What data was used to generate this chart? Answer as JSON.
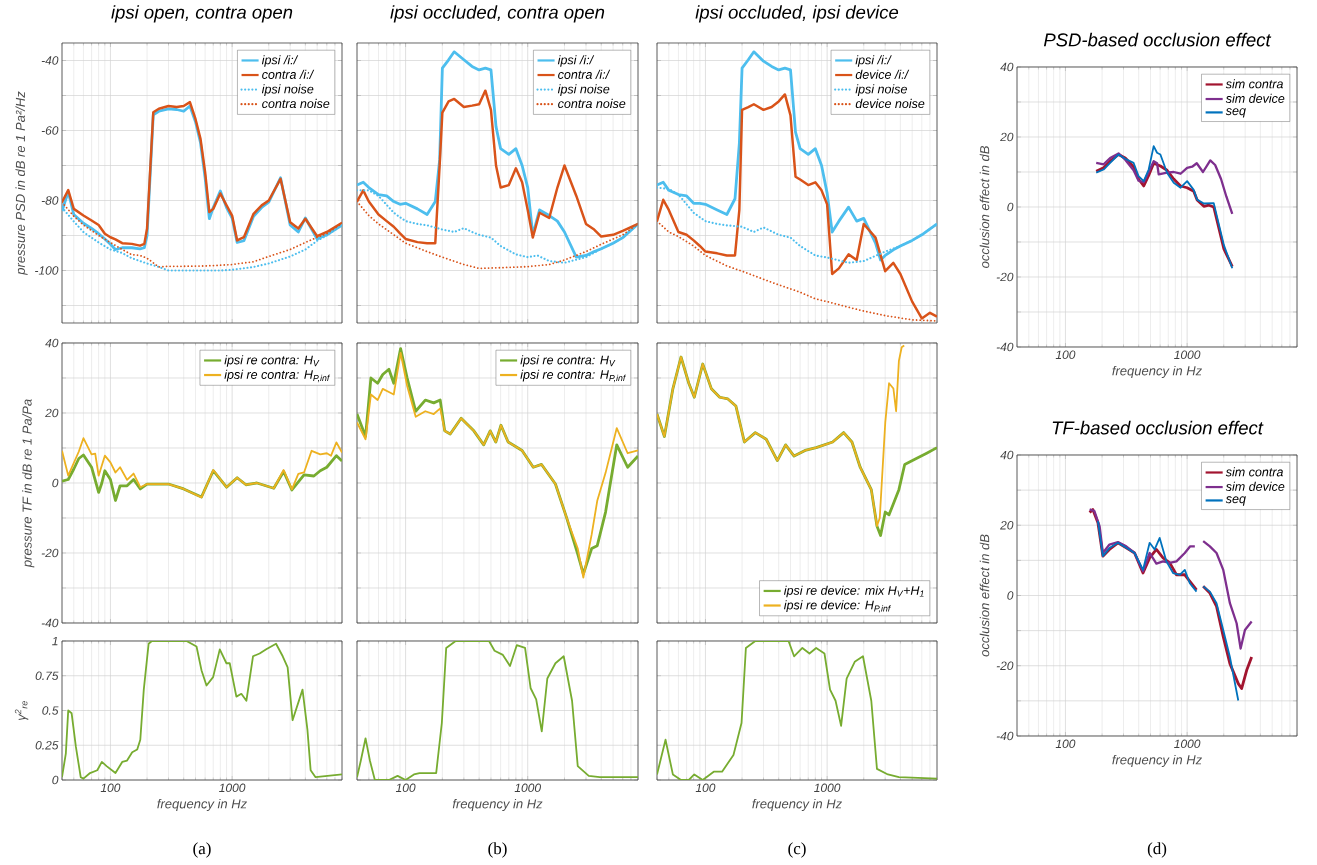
{
  "chart_data": [
    {
      "type": "line",
      "title": "ipsi open, contra open",
      "ylabel": "pressure PSD in dB re 1 Pa²/Hz",
      "xlim": [
        40,
        8000
      ],
      "xticks": [
        100,
        1000
      ],
      "ylim": [
        -115,
        -35
      ],
      "yticks": [
        {
          "value": -110,
          "label": null
        },
        -100,
        {
          "value": -90,
          "label": null
        },
        -80,
        {
          "value": -70,
          "label": null
        },
        -60,
        {
          "value": -50,
          "label": null
        },
        -40
      ],
      "log": "x",
      "grid": true,
      "legend": "top right",
      "tick_labels": "y",
      "series": [
        {
          "name": "ipsi /i:/",
          "color": "#4dbeee",
          "x": [
            40,
            45,
            50,
            60,
            70,
            80,
            90,
            100,
            110,
            125,
            150,
            175,
            190,
            200,
            225,
            250,
            300,
            350,
            400,
            450,
            500,
            550,
            600,
            650,
            700,
            800,
            900,
            1000,
            1100,
            1250,
            1500,
            1750,
            2000,
            2500,
            3000,
            3500,
            4000,
            5000,
            6000,
            8000
          ],
          "values": [
            -83,
            -77.5,
            -84,
            -86.5,
            -88,
            -89.5,
            -91,
            -92.5,
            -94,
            -93.5,
            -93.5,
            -93.8,
            -93.5,
            -90,
            -55.5,
            -54.5,
            -53.8,
            -54,
            -54.5,
            -53,
            -57.5,
            -63.5,
            -73.5,
            -85.2,
            -82,
            -77.3,
            -82,
            -85,
            -92,
            -91.5,
            -84.5,
            -82,
            -80.5,
            -73.5,
            -87,
            -89,
            -85,
            -91,
            -89.8,
            -87
          ]
        },
        {
          "name": "contra /i:/",
          "color": "#d95319",
          "x": [
            40,
            45,
            50,
            60,
            70,
            80,
            90,
            100,
            110,
            125,
            150,
            175,
            190,
            200,
            225,
            250,
            300,
            350,
            400,
            450,
            500,
            550,
            600,
            650,
            700,
            800,
            900,
            1000,
            1100,
            1250,
            1500,
            1750,
            2000,
            2500,
            3000,
            3500,
            4000,
            5000,
            6000,
            8000
          ],
          "values": [
            -80.5,
            -77,
            -82.4,
            -84.3,
            -85.7,
            -87,
            -89.5,
            -90.5,
            -91.1,
            -92.2,
            -92.4,
            -92.9,
            -92.4,
            -88,
            -54.8,
            -53.8,
            -53,
            -53.3,
            -53,
            -51.9,
            -56.7,
            -62.4,
            -71.9,
            -83.3,
            -82.4,
            -78,
            -81.4,
            -84.3,
            -91.4,
            -90.5,
            -83.8,
            -81.4,
            -80,
            -73.8,
            -86.2,
            -88,
            -85.2,
            -90.2,
            -89,
            -86.4
          ]
        },
        {
          "name": "ipsi noise",
          "color": "#4dbeee",
          "line_style": "dotted",
          "x": [
            40,
            50,
            60,
            80,
            100,
            125,
            150,
            200,
            250,
            300,
            400,
            600,
            800,
            1000,
            1500,
            2000,
            3000,
            4000,
            5000,
            6000,
            8000
          ],
          "values": [
            -82,
            -86,
            -89,
            -92,
            -94,
            -95,
            -96.5,
            -98,
            -99,
            -100,
            -100,
            -100,
            -100,
            -99.8,
            -99,
            -98,
            -96,
            -94,
            -91.5,
            -90,
            -87
          ]
        },
        {
          "name": "contra noise",
          "color": "#d95319",
          "line_style": "dotted",
          "x": [
            40,
            50,
            60,
            80,
            100,
            125,
            150,
            175,
            200,
            250,
            300,
            400,
            600,
            800,
            1000,
            1500,
            2000,
            3000,
            4000,
            5000,
            6000,
            8000
          ],
          "values": [
            -80.5,
            -84.5,
            -87,
            -90,
            -92,
            -94,
            -95.5,
            -95.7,
            -96.5,
            -99,
            -98.8,
            -98.8,
            -98.7,
            -98.5,
            -98.3,
            -97.5,
            -96,
            -94,
            -92,
            -90.5,
            -89.5,
            -86.5
          ]
        }
      ]
    },
    {
      "type": "line",
      "ylabel": "pressure TF in dB re 1 Pa/Pa",
      "xlim": [
        40,
        8000
      ],
      "xticks": [
        100,
        1000
      ],
      "ylim": [
        -40,
        40
      ],
      "yticks": [
        -40,
        {
          "value": -30,
          "label": null
        },
        -20,
        {
          "value": -10,
          "label": null
        },
        0,
        {
          "value": 10,
          "label": null
        },
        20,
        {
          "value": 30,
          "label": null
        },
        40
      ],
      "log": "x",
      "grid": true,
      "legend": "top right",
      "tick_labels": "y",
      "series": [
        {
          "name": "ipsi re contra: H$_{V}$",
          "color": "#77ac30",
          "x": [
            40,
            45,
            50,
            55,
            60,
            70,
            80,
            85,
            90,
            100,
            110,
            120,
            137,
            155,
            176,
            200,
            300,
            400,
            560,
            700,
            900,
            1100,
            1300,
            1600,
            2200,
            2650,
            3100,
            3900,
            4700,
            5300,
            6000,
            7200,
            8000
          ],
          "values": [
            0.5,
            1,
            4,
            7,
            8,
            4.5,
            -2.7,
            0,
            3.5,
            1,
            -5,
            -0.8,
            -0.8,
            1,
            -1.7,
            -0.3,
            -0.3,
            -1.7,
            -4,
            3.5,
            -1.2,
            1.5,
            -0.5,
            0,
            -1.5,
            3.3,
            -2,
            2.3,
            2,
            3.5,
            4.5,
            7.8,
            6.3
          ]
        },
        {
          "name": "ipsi re contra: H$_{P,inf}$",
          "color": "#edb120",
          "x": [
            40,
            45,
            55,
            60,
            70,
            75,
            80,
            90,
            100,
            110,
            120,
            137,
            155,
            176,
            200,
            300,
            400,
            560,
            700,
            900,
            1100,
            1300,
            1600,
            2200,
            2650,
            3100,
            3500,
            3900,
            4500,
            5300,
            6000,
            6500,
            7200,
            8000
          ],
          "values": [
            9.2,
            2.1,
            9,
            12.8,
            8.2,
            8.4,
            2.1,
            7.8,
            5.9,
            3,
            4.5,
            0.9,
            2.7,
            -1.2,
            -0.3,
            -0.3,
            -1.7,
            -4.1,
            3.7,
            -1.2,
            1.5,
            -0.5,
            0,
            -1.5,
            3.7,
            -1.8,
            2.6,
            3,
            9.2,
            8.2,
            8.5,
            7.8,
            11.6,
            8.7
          ]
        }
      ]
    },
    {
      "type": "line",
      "ylabel": "γ$^{2}$$_{re}$",
      "xlabel": "frequency in Hz",
      "annotations": [
        "(a)"
      ],
      "xlim": [
        40,
        8000
      ],
      "xticks": [
        100,
        1000
      ],
      "ylim": [
        0,
        1
      ],
      "yticks": [
        0,
        0.25,
        0.5,
        0.75,
        1
      ],
      "log": "x",
      "grid": true,
      "series": [
        {
          "color": "#77ac30",
          "x": [
            40,
            43,
            45,
            48,
            52,
            57,
            60,
            68,
            78,
            85,
            93,
            110,
            125,
            137,
            151,
            166,
            176,
            188,
            206,
            219,
            422,
            510,
            560,
            616,
            698,
            792,
            898,
            956,
            1084,
            1191,
            1310,
            1485,
            1683,
            1908,
            2296,
            2606,
            2860,
            3140,
            3790,
            4160,
            4420,
            4850,
            8000
          ],
          "values": [
            0.02,
            0.19,
            0.5,
            0.48,
            0.24,
            0.02,
            0.01,
            0.05,
            0.07,
            0.13,
            0.1,
            0.05,
            0.13,
            0.14,
            0.2,
            0.22,
            0.29,
            0.65,
            0.98,
            1,
            1,
            0.96,
            0.79,
            0.68,
            0.74,
            0.94,
            0.84,
            0.84,
            0.6,
            0.62,
            0.57,
            0.89,
            0.91,
            0.94,
            0.98,
            0.89,
            0.81,
            0.43,
            0.65,
            0.36,
            0.07,
            0.02,
            0.04
          ]
        }
      ]
    },
    {
      "type": "line",
      "title": "ipsi occluded, contra open",
      "xlim": [
        40,
        8000
      ],
      "xticks": [
        100,
        1000
      ],
      "ylim": [
        -115,
        -35
      ],
      "yticks": [
        {
          "value": -110,
          "label": null
        },
        -100,
        {
          "value": -90,
          "label": null
        },
        -80,
        {
          "value": -70,
          "label": null
        },
        -60,
        {
          "value": -50,
          "label": null
        },
        -40
      ],
      "log": "x",
      "grid": true,
      "legend": "top right",
      "tick_labels": false,
      "series": [
        {
          "name": "ipsi /i:/",
          "color": "#4dbeee",
          "x": [
            40,
            45,
            50,
            60,
            70,
            80,
            90,
            100,
            125,
            150,
            175,
            190,
            200,
            225,
            250,
            300,
            350,
            400,
            450,
            500,
            550,
            600,
            700,
            800,
            900,
            1000,
            1100,
            1250,
            1500,
            1750,
            2000,
            2500,
            3000,
            3500,
            4000,
            5000,
            6000,
            8000
          ],
          "values": [
            -75.6,
            -74.8,
            -76.3,
            -78.3,
            -78.7,
            -80.3,
            -81.1,
            -80.8,
            -82.4,
            -84,
            -80.3,
            -68.4,
            -42.2,
            -39.8,
            -37.5,
            -39.8,
            -41.7,
            -42.7,
            -42.2,
            -42.7,
            -58.9,
            -65.2,
            -66.8,
            -65.2,
            -70,
            -76.3,
            -89.8,
            -82.7,
            -84.3,
            -85.9,
            -89,
            -96.2,
            -95.7,
            -94.6,
            -93.8,
            -92.2,
            -90.6,
            -86.7
          ]
        },
        {
          "name": "contra /i:/",
          "color": "#d95319",
          "x": [
            40,
            45,
            50,
            60,
            70,
            80,
            90,
            100,
            125,
            150,
            175,
            190,
            200,
            225,
            250,
            300,
            350,
            400,
            450,
            500,
            550,
            600,
            700,
            800,
            900,
            1000,
            1100,
            1250,
            1500,
            1750,
            2000,
            2500,
            3000,
            3500,
            4000,
            5000,
            6000,
            8000
          ],
          "values": [
            -80.3,
            -77.1,
            -80.3,
            -84,
            -85.9,
            -87.5,
            -89.4,
            -91,
            -91.9,
            -92.2,
            -92.2,
            -70,
            -54.9,
            -51.7,
            -51,
            -53.3,
            -52.9,
            -52.5,
            -48.6,
            -54.1,
            -70,
            -76.3,
            -75.6,
            -70.8,
            -74.8,
            -82.7,
            -90.6,
            -83.5,
            -85,
            -76.3,
            -70,
            -78.7,
            -86.7,
            -88.3,
            -90.3,
            -89.8,
            -88.7,
            -86.7
          ]
        },
        {
          "name": "ipsi noise",
          "color": "#4dbeee",
          "line_style": "dotted",
          "x": [
            40,
            50,
            60,
            80,
            100,
            125,
            150,
            200,
            250,
            300,
            350,
            400,
            500,
            600,
            800,
            1000,
            1200,
            1500,
            2000,
            3000,
            4000,
            5000,
            6000,
            8000
          ],
          "values": [
            -77.1,
            -77.1,
            -78.7,
            -83.5,
            -85.9,
            -86.7,
            -87.1,
            -88.3,
            -89,
            -87.9,
            -89,
            -89.8,
            -90.6,
            -93,
            -95.4,
            -96.2,
            -95.7,
            -97.3,
            -97.8,
            -96.2,
            -93.8,
            -92.2,
            -90.6,
            -86.7
          ]
        },
        {
          "name": "contra noise",
          "color": "#d95319",
          "line_style": "dotted",
          "x": [
            40,
            50,
            60,
            80,
            100,
            150,
            200,
            300,
            400,
            600,
            1000,
            1500,
            2000,
            3000,
            4000,
            6000,
            8000
          ],
          "values": [
            -80.3,
            -84.3,
            -86.7,
            -89.8,
            -92.2,
            -94.6,
            -96.2,
            -98.3,
            -99.4,
            -99.2,
            -98.9,
            -98.3,
            -97,
            -94.6,
            -92.5,
            -89.8,
            -86.7
          ]
        }
      ]
    },
    {
      "type": "line",
      "xlim": [
        40,
        8000
      ],
      "xticks": [
        100,
        1000
      ],
      "ylim": [
        -40,
        40
      ],
      "yticks": [
        -40,
        {
          "value": -30,
          "label": null
        },
        -20,
        {
          "value": -10,
          "label": null
        },
        0,
        {
          "value": 10,
          "label": null
        },
        20,
        {
          "value": 30,
          "label": null
        },
        40
      ],
      "log": "x",
      "grid": true,
      "legend": "top right",
      "tick_labels": false,
      "series": [
        {
          "name": "ipsi re contra: H$_{V}$",
          "color": "#77ac30",
          "x": [
            40,
            47,
            52,
            59,
            65,
            73,
            80,
            91,
            103,
            121,
            145,
            170,
            192,
            209,
            232,
            285,
            362,
            436,
            493,
            548,
            604,
            691,
            899,
            1110,
            1298,
            1686,
            2081,
            2568,
            2853,
            3340,
            3710,
            4340,
            5360,
            6580,
            8000
          ],
          "values": [
            19.7,
            13.3,
            30,
            28.5,
            31,
            32.5,
            28.5,
            38.4,
            30,
            20.5,
            23.7,
            22.9,
            23.7,
            14.9,
            14,
            18.5,
            14.9,
            10.9,
            14.9,
            11.7,
            16.5,
            11.7,
            9.3,
            4.5,
            5.3,
            -0.3,
            -9.9,
            -20.3,
            -26,
            -18.7,
            -17.9,
            -8.3,
            10.9,
            4.5,
            7.7
          ]
        },
        {
          "name": "ipsi re contra: H$_{P,inf}$",
          "color": "#edb120",
          "x": [
            40,
            47,
            52,
            59,
            65,
            73,
            80,
            91,
            103,
            121,
            145,
            170,
            192,
            209,
            232,
            285,
            362,
            436,
            493,
            548,
            604,
            691,
            899,
            1110,
            1298,
            1686,
            2081,
            2568,
            2853,
            3340,
            3710,
            4340,
            5360,
            6580,
            8000
          ],
          "values": [
            17.3,
            12.5,
            25.3,
            23.7,
            26.9,
            26,
            25.3,
            37.2,
            27.7,
            18.9,
            20.5,
            19.7,
            21.3,
            14.9,
            14,
            18.5,
            14.9,
            10.9,
            14.9,
            11.7,
            16.5,
            11.7,
            9.3,
            4.5,
            5.3,
            -0.3,
            -9.9,
            -18.7,
            -27,
            -14.7,
            -5.1,
            2.9,
            15.7,
            8.5,
            9.3
          ]
        }
      ]
    },
    {
      "type": "line",
      "xlabel": "frequency in Hz",
      "annotations": [
        "(b)"
      ],
      "xlim": [
        40,
        8000
      ],
      "xticks": [
        100,
        1000
      ],
      "ylim": [
        0,
        1
      ],
      "yticks": [
        0,
        0.25,
        0.5,
        0.75,
        1
      ],
      "log": "x",
      "grid": true,
      "tick_labels": "x",
      "series": [
        {
          "color": "#77ac30",
          "x": [
            40,
            43,
            47,
            51,
            56,
            73,
            86,
            100,
            117,
            130,
            178,
            198,
            215,
            257,
            482,
            535,
            626,
            716,
            813,
            951,
            1057,
            1173,
            1303,
            1447,
            1686,
            1971,
            2307,
            2568,
            3160,
            3890,
            8000
          ],
          "values": [
            0.02,
            0.14,
            0.3,
            0.14,
            0,
            0,
            0.03,
            0,
            0.04,
            0.05,
            0.05,
            0.41,
            0.95,
            1,
            1,
            0.93,
            0.9,
            0.82,
            0.97,
            0.95,
            0.66,
            0.58,
            0.35,
            0.73,
            0.84,
            0.89,
            0.57,
            0.1,
            0.03,
            0.02,
            0.02
          ]
        }
      ]
    },
    {
      "type": "line",
      "title": "ipsi occluded, ipsi device",
      "xlim": [
        40,
        8000
      ],
      "xticks": [
        100,
        1000
      ],
      "ylim": [
        -115,
        -35
      ],
      "yticks": [
        {
          "value": -110,
          "label": null
        },
        -100,
        {
          "value": -90,
          "label": null
        },
        -80,
        {
          "value": -70,
          "label": null
        },
        -60,
        {
          "value": -50,
          "label": null
        },
        -40
      ],
      "log": "x",
      "grid": true,
      "legend": "top right",
      "tick_labels": false,
      "series": [
        {
          "name": "ipsi /i:/",
          "color": "#4dbeee",
          "x": [
            40,
            45,
            50,
            60,
            70,
            80,
            90,
            100,
            125,
            150,
            175,
            190,
            200,
            225,
            250,
            300,
            350,
            400,
            450,
            500,
            550,
            600,
            700,
            800,
            900,
            1000,
            1100,
            1250,
            1500,
            1750,
            2000,
            2500,
            2750,
            3000,
            3500,
            4000,
            5000,
            6000,
            8000
          ],
          "values": [
            -75.6,
            -74.8,
            -77.1,
            -78.3,
            -78.7,
            -80.8,
            -80.8,
            -81.1,
            -82.7,
            -84,
            -79.5,
            -63.7,
            -42.2,
            -39.8,
            -37.5,
            -40.2,
            -41.7,
            -42.7,
            -42.2,
            -42.7,
            -60.5,
            -65.2,
            -66.8,
            -65.2,
            -70,
            -77.9,
            -89,
            -85.9,
            -81.9,
            -85.9,
            -85.1,
            -92.2,
            -97,
            -95.7,
            -94.1,
            -93,
            -91.4,
            -89.8,
            -86.7
          ]
        },
        {
          "name": "device /i:/",
          "color": "#d95319",
          "x": [
            40,
            45,
            50,
            60,
            70,
            80,
            90,
            100,
            125,
            150,
            175,
            190,
            200,
            225,
            250,
            300,
            350,
            400,
            450,
            500,
            550,
            600,
            700,
            800,
            900,
            1000,
            1100,
            1250,
            1500,
            1750,
            2000,
            2500,
            3000,
            3500,
            4000,
            5000,
            6000,
            7000,
            8000
          ],
          "values": [
            -85.9,
            -79.8,
            -82.7,
            -89,
            -89.8,
            -91.4,
            -93,
            -94.6,
            -95.1,
            -95.7,
            -95.7,
            -82.7,
            -54.1,
            -53.3,
            -52.5,
            -54.1,
            -53.3,
            -51.7,
            -49.7,
            -55.7,
            -73.2,
            -74,
            -75.6,
            -74.8,
            -77.1,
            -81.1,
            -101,
            -99.4,
            -95.4,
            -97,
            -86.7,
            -90.6,
            -100.2,
            -97.8,
            -101,
            -108.9,
            -113.7,
            -112.1,
            -113.2
          ]
        },
        {
          "name": "ipsi noise",
          "color": "#4dbeee",
          "line_style": "dotted",
          "x": [
            40,
            50,
            60,
            80,
            100,
            125,
            150,
            200,
            250,
            300,
            400,
            500,
            600,
            800,
            1000,
            1500,
            2000,
            3000,
            4000,
            5000,
            6000,
            8000
          ],
          "values": [
            -76.3,
            -76.7,
            -78.3,
            -83.5,
            -85.9,
            -86.7,
            -87.1,
            -87.5,
            -89,
            -87.7,
            -89.8,
            -90.6,
            -93,
            -95.7,
            -96.3,
            -97.8,
            -97.3,
            -94.6,
            -93,
            -91.4,
            -89.8,
            -86.7
          ]
        },
        {
          "name": "device noise",
          "color": "#d95319",
          "line_style": "dotted",
          "x": [
            40,
            50,
            60,
            80,
            100,
            150,
            200,
            300,
            400,
            600,
            800,
            1000,
            1500,
            2000,
            3000,
            5000,
            8000
          ],
          "values": [
            -85.9,
            -89,
            -90.3,
            -93,
            -95.7,
            -98.7,
            -100.2,
            -102.5,
            -104.1,
            -106.2,
            -108.1,
            -108.9,
            -110.5,
            -111.6,
            -112.9,
            -114.1,
            -114.4
          ]
        }
      ]
    },
    {
      "type": "line",
      "xlim": [
        40,
        8000
      ],
      "xticks": [
        100,
        1000
      ],
      "ylim": [
        -40,
        40
      ],
      "yticks": [
        -40,
        {
          "value": -30,
          "label": null
        },
        -20,
        {
          "value": -10,
          "label": null
        },
        0,
        {
          "value": 10,
          "label": null
        },
        20,
        {
          "value": 30,
          "label": null
        },
        40
      ],
      "log": "x",
      "grid": true,
      "legend": "bottom right",
      "tick_labels": false,
      "series": [
        {
          "name": "ipsi re device: mix H$_{V}$+H$_{1}$",
          "color": "#77ac30",
          "x": [
            40,
            46,
            54,
            63,
            73,
            81,
            95,
            112,
            131,
            153,
            178,
            209,
            257,
            316,
            390,
            456,
            535,
            659,
            813,
            1110,
            1368,
            1600,
            1870,
            2307,
            2568,
            2750,
            3005,
            3228,
            3505,
            3890,
            4340,
            5360,
            6580,
            8000
          ],
          "values": [
            19.7,
            13.3,
            26.9,
            36,
            28.5,
            24.5,
            34,
            26.9,
            24.5,
            24,
            22,
            11.7,
            14.4,
            12.5,
            6.4,
            10.9,
            7.7,
            9.3,
            10.1,
            11.7,
            14.4,
            11.7,
            4.5,
            -1.9,
            -12.3,
            -15,
            -8.3,
            -9.1,
            -5.9,
            -1.9,
            5.3,
            6.9,
            8.5,
            10.1
          ]
        },
        {
          "name": "ipsi re device: H$_{P,inf}$",
          "color": "#edb120",
          "x": [
            40,
            46,
            54,
            63,
            73,
            81,
            95,
            112,
            131,
            153,
            178,
            209,
            257,
            316,
            390,
            456,
            535,
            659,
            813,
            1110,
            1368,
            1600,
            1870,
            2307,
            2568,
            2707,
            3005,
            3228,
            3505,
            3690,
            3890,
            4100,
            4300
          ],
          "values": [
            19.7,
            13.3,
            26.9,
            36,
            28.5,
            24.5,
            34,
            26.9,
            24.5,
            24,
            22,
            11.7,
            14.4,
            12.5,
            6.4,
            10.9,
            7.7,
            9.3,
            10.1,
            11.7,
            14.4,
            11.7,
            4.5,
            -1.9,
            -12.3,
            -10,
            17.3,
            28.5,
            27,
            20.5,
            34.9,
            38.8,
            39.3
          ]
        }
      ]
    },
    {
      "type": "line",
      "xlabel": "frequency in Hz",
      "annotations": [
        "(c)"
      ],
      "xlim": [
        40,
        8000
      ],
      "xticks": [
        100,
        1000
      ],
      "ylim": [
        0,
        1
      ],
      "yticks": [
        0,
        0.25,
        0.5,
        0.75,
        1
      ],
      "log": "x",
      "grid": true,
      "tick_labels": "x",
      "series": [
        {
          "color": "#77ac30",
          "x": [
            40,
            47,
            54,
            63,
            73,
            81,
            95,
            117,
            137,
            170,
            198,
            215,
            257,
            482,
            535,
            626,
            716,
            813,
            951,
            1057,
            1173,
            1303,
            1447,
            1686,
            1971,
            2307,
            2568,
            3160,
            3890,
            8000
          ],
          "values": [
            0.04,
            0.29,
            0.04,
            0,
            0,
            0.04,
            0,
            0.06,
            0.06,
            0.18,
            0.41,
            0.95,
            1,
            1,
            0.89,
            0.95,
            0.91,
            0.95,
            0.91,
            0.65,
            0.57,
            0.39,
            0.73,
            0.85,
            0.89,
            0.57,
            0.08,
            0.04,
            0.02,
            0.01
          ]
        }
      ]
    },
    {
      "type": "line",
      "title": "PSD-based occlusion effect",
      "xlabel": "frequency in Hz",
      "ylabel": "occlusion effect in dB",
      "xlim": [
        40,
        8000
      ],
      "xticks": [
        100,
        1000
      ],
      "ylim": [
        -40,
        40
      ],
      "yticks": [
        -40,
        {
          "value": -30,
          "label": null
        },
        -20,
        {
          "value": -10,
          "label": null
        },
        0,
        {
          "value": 10,
          "label": null
        },
        20,
        {
          "value": 30,
          "label": null
        },
        40
      ],
      "log": "x",
      "grid": true,
      "legend": "top right",
      "series": [
        {
          "name": "sim contra",
          "color": "#a2142f",
          "x": [
            179,
            206,
            233,
            273,
            310,
            363,
            399,
            440,
            483,
            531,
            603,
            684,
            776,
            883,
            1000,
            1133,
            1209,
            1372,
            1509,
            1655,
            2005,
            2350
          ],
          "values": [
            10.2,
            11.2,
            13.1,
            15,
            14,
            11.5,
            8,
            6,
            9,
            12.5,
            11.7,
            10.5,
            8,
            6,
            5.5,
            4.5,
            2,
            0.2,
            0.5,
            0,
            -12,
            -17
          ]
        },
        {
          "name": "sim device",
          "color": "#7e2f8e",
          "x": [
            179,
            206,
            233,
            273,
            310,
            363,
            399,
            440,
            483,
            531,
            566,
            584,
            684,
            776,
            883,
            1000,
            1100,
            1200,
            1350,
            1550,
            1700,
            1900,
            2100,
            2350
          ],
          "values": [
            12.6,
            12.2,
            14,
            15.3,
            13.5,
            10.5,
            7.5,
            7.1,
            10,
            13.1,
            12.5,
            9.3,
            9.8,
            10,
            9.5,
            11.2,
            11.5,
            12.5,
            10,
            13.3,
            12,
            8,
            3,
            -2
          ]
        },
        {
          "name": "seq",
          "color": "#0072bd",
          "x": [
            179,
            206,
            233,
            273,
            310,
            363,
            399,
            440,
            483,
            531,
            566,
            603,
            684,
            776,
            883,
            1000,
            1133,
            1209,
            1372,
            1655,
            2005,
            2350
          ],
          "values": [
            9.8,
            10.7,
            12.6,
            15,
            13.8,
            12.6,
            8.8,
            7.4,
            10.7,
            17.4,
            15.5,
            15,
            9.8,
            6.9,
            5.5,
            7.4,
            4.9,
            2.1,
            1,
            1.1,
            -10.9,
            -17.5
          ]
        }
      ]
    },
    {
      "type": "line",
      "title": "TF-based occlusion effect",
      "xlabel": "frequency in Hz",
      "ylabel": "occlusion effect in dB",
      "annotations": [
        "(d)"
      ],
      "xlim": [
        40,
        8000
      ],
      "xticks": [
        100,
        1000
      ],
      "ylim": [
        -40,
        40
      ],
      "yticks": [
        -40,
        {
          "value": -30,
          "label": null
        },
        -20,
        {
          "value": -10,
          "label": null
        },
        0,
        {
          "value": 10,
          "label": null
        },
        20,
        {
          "value": 30,
          "label": null
        },
        40
      ],
      "log": "x",
      "grid": true,
      "legend": "top right",
      "series": [
        {
          "name": "sim contra",
          "color": "#a2142f",
          "x": [
            158,
            168,
            185,
            203,
            230,
            270,
            316,
            370,
            434,
            492,
            559,
            634,
            720,
            817,
            957,
            1194,
            1270,
            1355,
            1538,
            1745,
            1981,
            2247,
            2632,
            2805,
            3085,
            3390
          ],
          "values": [
            23.6,
            24.5,
            20.7,
            11.2,
            13.1,
            15,
            13.6,
            12.1,
            6.4,
            10.7,
            13.1,
            10.7,
            9.3,
            5.9,
            5.9,
            1.6,
            null,
            2.6,
            0.7,
            -3.1,
            -11.7,
            -19.4,
            -25.1,
            -26.5,
            -21.3,
            -17.5
          ]
        },
        {
          "name": "sim device",
          "color": "#7e2f8e",
          "x": [
            158,
            173,
            191,
            203,
            230,
            270,
            316,
            370,
            434,
            492,
            559,
            634,
            720,
            817,
            957,
            1060,
            1157,
            1270,
            1355,
            1538,
            1745,
            1981,
            2247,
            2551,
            2752,
            2987,
            3390
          ],
          "values": [
            24.5,
            24,
            19.7,
            12.1,
            14.5,
            15.2,
            14,
            12.1,
            6.9,
            12.1,
            9.1,
            9.7,
            9.3,
            9.7,
            12.1,
            14,
            14,
            null,
            15.5,
            14,
            12.1,
            7.3,
            -2.2,
            -7.9,
            -15.1,
            -9.8,
            -7.4
          ]
        },
        {
          "name": "seq",
          "color": "#0072bd",
          "x": [
            185,
            203,
            230,
            270,
            316,
            370,
            434,
            492,
            541,
            595,
            676,
            767,
            870,
            957,
            1052,
            1194,
            1270,
            1355,
            1538,
            1745,
            1981,
            2247,
            2632
          ],
          "values": [
            21.2,
            11.2,
            13.5,
            15,
            13.6,
            12.1,
            7.3,
            15,
            13.1,
            16.4,
            9.7,
            6.4,
            5.9,
            7.3,
            3.5,
            1.1,
            null,
            2.6,
            1.1,
            -2.2,
            -9.8,
            -17.5,
            -29.9
          ]
        }
      ]
    }
  ]
}
